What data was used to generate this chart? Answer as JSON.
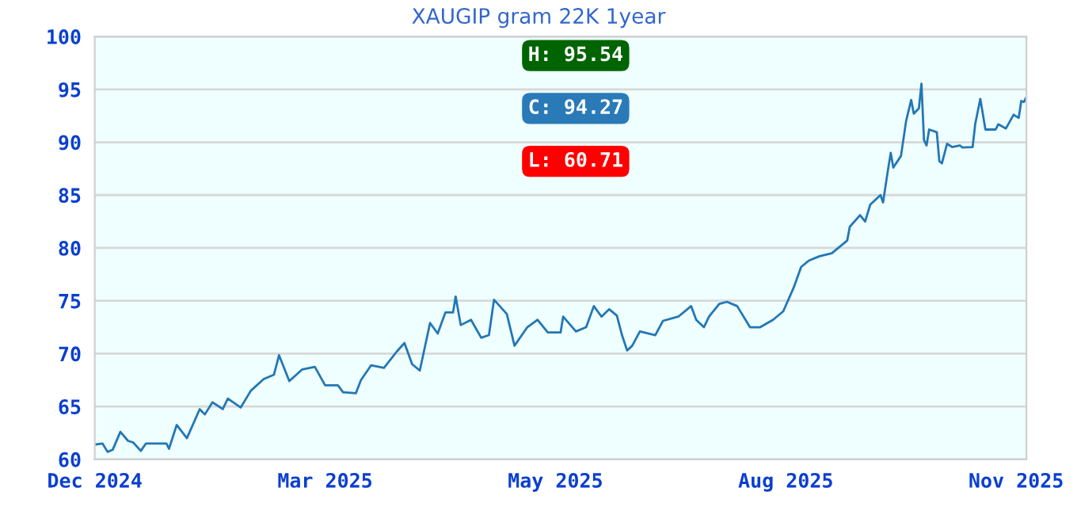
{
  "chart_data": {
    "type": "line",
    "title": "XAUGIP gram 22K 1year",
    "annotations": [
      "H: 95.54",
      "C: 94.27",
      "L: 60.71"
    ],
    "x": [
      "2024-12-01",
      "2024-12-04",
      "2024-12-06",
      "2024-12-08",
      "2024-12-11",
      "2024-12-14",
      "2024-12-16",
      "2024-12-19",
      "2024-12-21",
      "2024-12-29",
      "2024-12-30",
      "2025-01-02",
      "2025-01-06",
      "2025-01-11",
      "2025-01-13",
      "2025-01-16",
      "2025-01-20",
      "2025-01-22",
      "2025-01-27",
      "2025-01-31",
      "2025-02-05",
      "2025-02-09",
      "2025-02-11",
      "2025-02-15",
      "2025-02-20",
      "2025-02-25",
      "2025-03-01",
      "2025-03-06",
      "2025-03-08",
      "2025-03-13",
      "2025-03-15",
      "2025-03-19",
      "2025-03-24",
      "2025-03-29",
      "2025-04-01",
      "2025-04-04",
      "2025-04-07",
      "2025-04-11",
      "2025-04-14",
      "2025-04-17",
      "2025-04-20",
      "2025-04-21",
      "2025-04-23",
      "2025-04-27",
      "2025-05-01",
      "2025-05-04",
      "2025-05-06",
      "2025-05-11",
      "2025-05-14",
      "2025-05-19",
      "2025-05-23",
      "2025-05-27",
      "2025-06-01",
      "2025-06-02",
      "2025-06-07",
      "2025-06-11",
      "2025-06-14",
      "2025-06-17",
      "2025-06-20",
      "2025-06-23",
      "2025-06-25",
      "2025-06-27",
      "2025-06-29",
      "2025-07-02",
      "2025-07-08",
      "2025-07-11",
      "2025-07-17",
      "2025-07-22",
      "2025-07-24",
      "2025-07-27",
      "2025-07-29",
      "2025-08-02",
      "2025-08-05",
      "2025-08-09",
      "2025-08-14",
      "2025-08-18",
      "2025-08-23",
      "2025-08-27",
      "2025-08-31",
      "2025-09-03",
      "2025-09-06",
      "2025-09-10",
      "2025-09-15",
      "2025-09-21",
      "2025-09-22",
      "2025-09-26",
      "2025-09-28",
      "2025-09-30",
      "2025-10-04",
      "2025-10-05",
      "2025-10-07",
      "2025-10-08",
      "2025-10-09",
      "2025-10-12",
      "2025-10-14",
      "2025-10-16",
      "2025-10-17",
      "2025-10-19",
      "2025-10-20",
      "2025-10-21",
      "2025-10-22",
      "2025-10-23",
      "2025-10-26",
      "2025-10-27",
      "2025-10-28",
      "2025-10-30",
      "2025-11-01",
      "2025-11-04",
      "2025-11-05",
      "2025-11-09",
      "2025-11-10",
      "2025-11-12",
      "2025-11-14",
      "2025-11-18",
      "2025-11-19",
      "2025-11-22",
      "2025-11-25",
      "2025-11-27",
      "2025-11-28",
      "2025-11-29",
      "2025-11-30"
    ],
    "series": [
      {
        "color": "#2277b5",
        "values": [
          61.4,
          61.5,
          60.71,
          60.9,
          62.6,
          61.75,
          61.6,
          60.8,
          61.5,
          61.5,
          61.0,
          63.25,
          62.0,
          64.75,
          64.25,
          65.4,
          64.75,
          65.75,
          64.9,
          66.5,
          67.6,
          68.0,
          69.85,
          67.4,
          68.5,
          68.75,
          67.0,
          67.0,
          66.35,
          66.25,
          67.5,
          68.9,
          68.65,
          70.2,
          71.0,
          69.0,
          68.4,
          72.9,
          71.9,
          73.9,
          73.9,
          75.4,
          72.7,
          73.2,
          71.5,
          71.75,
          75.1,
          73.75,
          70.75,
          72.5,
          73.2,
          72.0,
          72.0,
          73.5,
          72.1,
          72.5,
          74.5,
          73.5,
          74.2,
          73.6,
          71.75,
          70.3,
          70.75,
          72.1,
          71.75,
          73.1,
          73.5,
          74.5,
          73.2,
          72.5,
          73.5,
          74.7,
          74.9,
          74.5,
          72.5,
          72.5,
          73.2,
          74.0,
          76.2,
          78.2,
          78.8,
          79.2,
          79.5,
          80.7,
          82.0,
          83.1,
          82.5,
          84.1,
          85.0,
          84.3,
          87.5,
          89.0,
          87.6,
          88.7,
          92.0,
          94.0,
          92.7,
          93.2,
          95.54,
          90.2,
          89.7,
          91.2,
          90.95,
          88.2,
          88.0,
          89.85,
          89.55,
          89.7,
          89.5,
          89.55,
          91.7,
          94.1,
          91.2,
          91.2,
          91.7,
          91.3,
          92.6,
          92.3,
          93.9,
          93.8,
          94.27
        ]
      }
    ],
    "xlim": [
      "2024-12-01",
      "2025-11-30"
    ],
    "xticks": [
      {
        "value": "2024-12-01",
        "label": "Dec 2024"
      },
      {
        "value": "2025-03-01",
        "label": "Mar 2025"
      },
      {
        "value": "2025-05-30",
        "label": "May 2025"
      },
      {
        "value": "2025-08-28",
        "label": "Aug 2025"
      },
      {
        "value": "2025-11-26",
        "label": "Nov 2025"
      }
    ],
    "ylim": [
      60,
      100
    ],
    "yticks": [
      60,
      65,
      70,
      75,
      80,
      85,
      90,
      95,
      100
    ],
    "grid": "y",
    "legend": false,
    "line_style": "solid",
    "marker": "none"
  }
}
